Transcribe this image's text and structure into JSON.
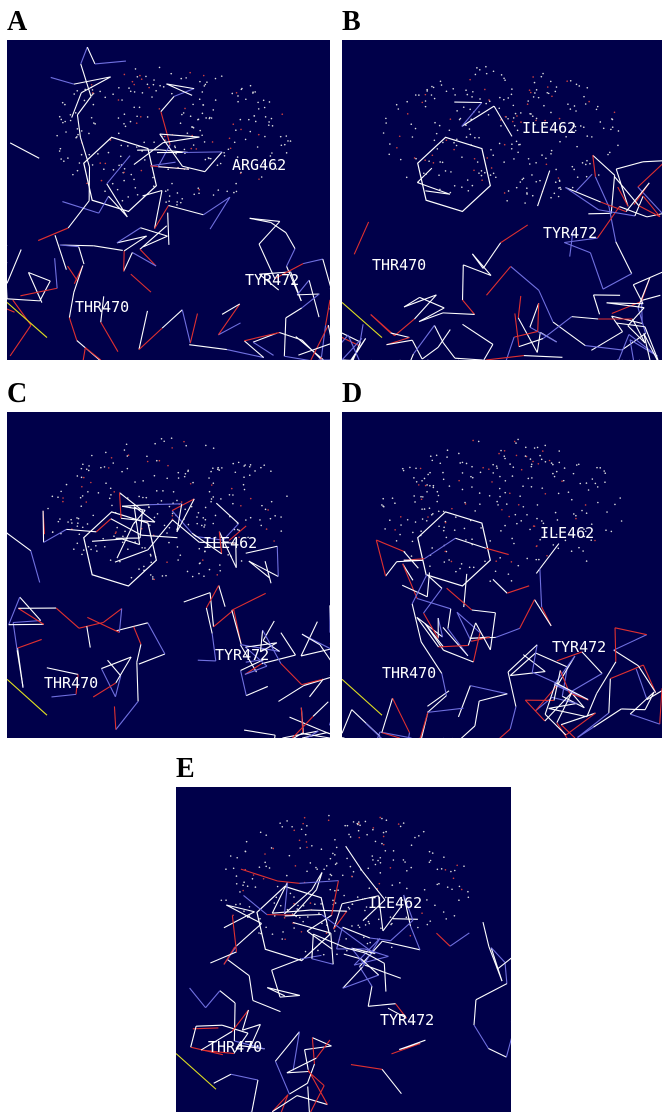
{
  "panels": [
    {
      "letter": "A",
      "labels": [
        "ARG462",
        "TYR472",
        "THR470"
      ]
    },
    {
      "letter": "B",
      "labels": [
        "ILE462",
        "TYR472",
        "THR470"
      ]
    },
    {
      "letter": "C",
      "labels": [
        "ILE462",
        "TYR472",
        "THR470"
      ]
    },
    {
      "letter": "D",
      "labels": [
        "ILE462",
        "TYR472",
        "THR470"
      ]
    },
    {
      "letter": "E",
      "labels": [
        "ILE462",
        "TYR472",
        "THR470"
      ]
    }
  ]
}
